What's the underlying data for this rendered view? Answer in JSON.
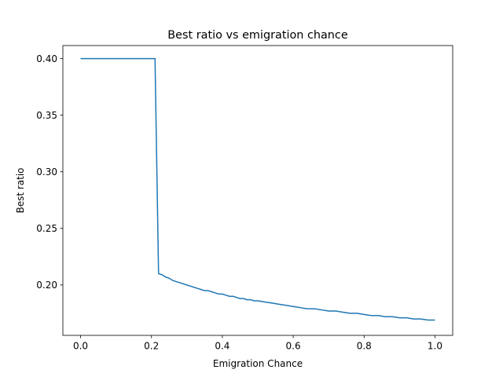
{
  "chart_data": {
    "type": "line",
    "title": "Best ratio vs emigration chance",
    "xlabel": "Emigration Chance",
    "ylabel": "Best ratio",
    "xlim": [
      -0.05,
      1.05
    ],
    "ylim": [
      0.1555,
      0.4115
    ],
    "xticks": [
      0.0,
      0.2,
      0.4,
      0.6,
      0.8,
      1.0
    ],
    "xtick_labels": [
      "0.0",
      "0.2",
      "0.4",
      "0.6",
      "0.8",
      "1.0"
    ],
    "yticks": [
      0.2,
      0.25,
      0.3,
      0.35,
      0.4
    ],
    "ytick_labels": [
      "0.20",
      "0.25",
      "0.30",
      "0.35",
      "0.40"
    ],
    "grid": false,
    "series": [
      {
        "color": "#1f77b4",
        "x": [
          0.0,
          0.21,
          0.22,
          0.23,
          0.24,
          0.25,
          0.26,
          0.27,
          0.28,
          0.29,
          0.3,
          0.31,
          0.32,
          0.33,
          0.34,
          0.35,
          0.36,
          0.37,
          0.38,
          0.39,
          0.4,
          0.41,
          0.42,
          0.43,
          0.44,
          0.45,
          0.46,
          0.47,
          0.48,
          0.49,
          0.5,
          0.52,
          0.54,
          0.56,
          0.58,
          0.6,
          0.62,
          0.64,
          0.66,
          0.68,
          0.7,
          0.72,
          0.74,
          0.76,
          0.78,
          0.8,
          0.82,
          0.84,
          0.86,
          0.88,
          0.9,
          0.92,
          0.94,
          0.96,
          0.98,
          1.0
        ],
        "y": [
          0.4,
          0.4,
          0.21,
          0.209,
          0.207,
          0.206,
          0.204,
          0.203,
          0.202,
          0.201,
          0.2,
          0.199,
          0.198,
          0.197,
          0.196,
          0.195,
          0.195,
          0.194,
          0.193,
          0.192,
          0.192,
          0.191,
          0.19,
          0.19,
          0.189,
          0.188,
          0.188,
          0.187,
          0.187,
          0.186,
          0.186,
          0.185,
          0.184,
          0.183,
          0.182,
          0.181,
          0.18,
          0.179,
          0.179,
          0.178,
          0.177,
          0.177,
          0.176,
          0.175,
          0.175,
          0.174,
          0.173,
          0.173,
          0.172,
          0.172,
          0.171,
          0.171,
          0.17,
          0.17,
          0.169,
          0.169
        ]
      }
    ]
  }
}
